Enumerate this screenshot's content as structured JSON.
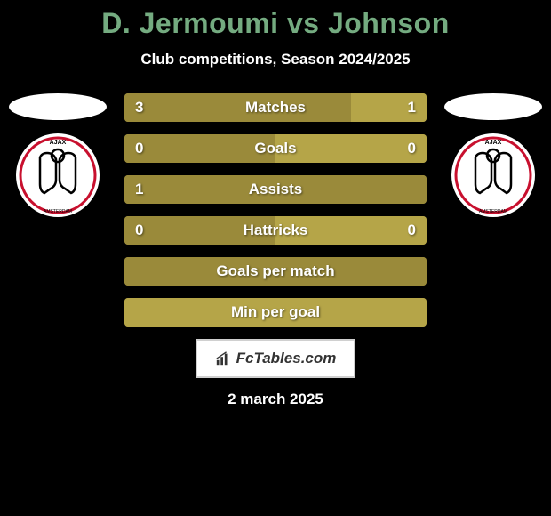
{
  "title": "D. Jermoumi vs Johnson",
  "subtitle": "Club competitions, Season 2024/2025",
  "date": "2 march 2025",
  "watermark": "FcTables.com",
  "colors": {
    "background": "#000000",
    "title_color": "#74ab80",
    "text_color": "#ffffff",
    "bar_dark": "#9a8a3a",
    "bar_light": "#b5a548",
    "shield_fill": "#ffffff",
    "shield_red": "#c8102e"
  },
  "player_left": {
    "name": "D. Jermoumi",
    "club_abbr": "AJAX"
  },
  "player_right": {
    "name": "Johnson",
    "club_abbr": "AJAX"
  },
  "stats": [
    {
      "label": "Matches",
      "left_value": "3",
      "right_value": "1",
      "left_pct": 75,
      "right_pct": 25
    },
    {
      "label": "Goals",
      "left_value": "0",
      "right_value": "0",
      "left_pct": 50,
      "right_pct": 50
    },
    {
      "label": "Assists",
      "left_value": "1",
      "right_value": "",
      "left_pct": 100,
      "right_pct": 0
    },
    {
      "label": "Hattricks",
      "left_value": "0",
      "right_value": "0",
      "left_pct": 50,
      "right_pct": 50
    },
    {
      "label": "Goals per match",
      "left_value": "",
      "right_value": "",
      "left_pct": 100,
      "right_pct": 0
    },
    {
      "label": "Min per goal",
      "left_value": "",
      "right_value": "",
      "left_pct": 0,
      "right_pct": 100
    }
  ]
}
